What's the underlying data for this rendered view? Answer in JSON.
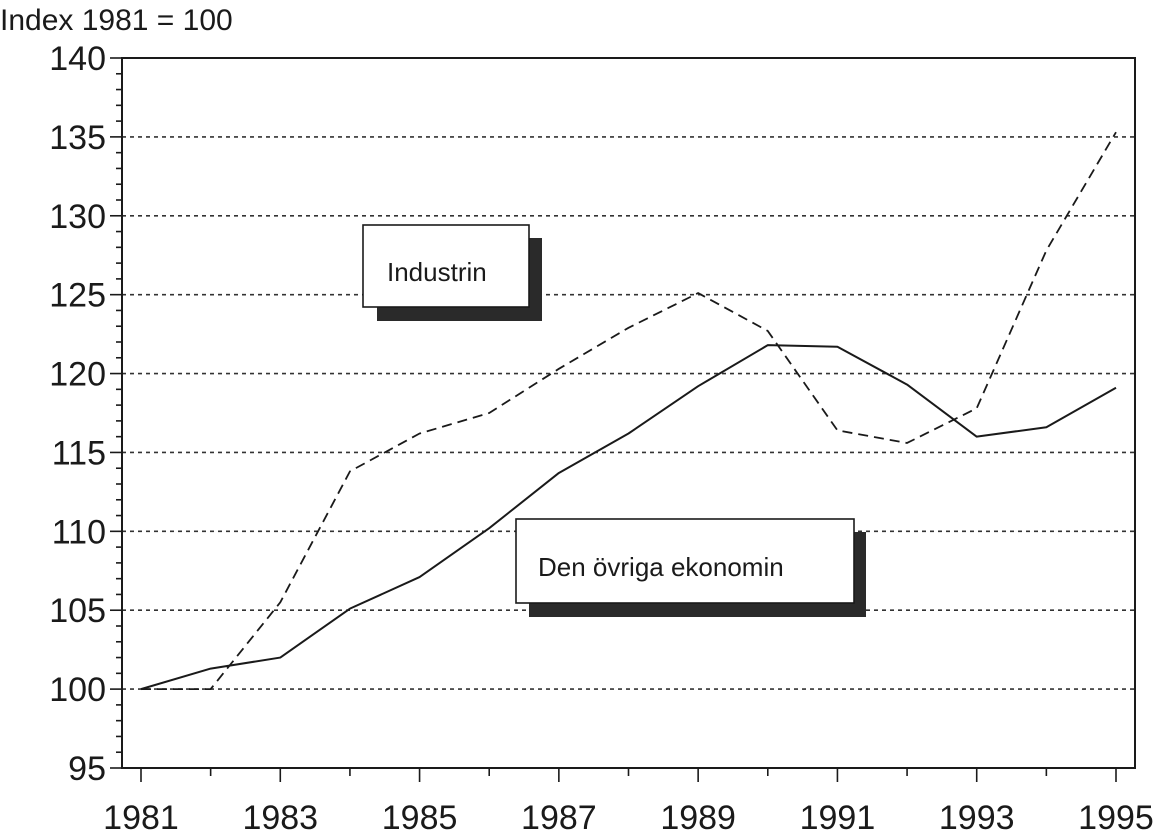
{
  "chart_data": {
    "type": "line",
    "title": "",
    "ylabel": "Index 1981 = 100",
    "xlabel": "",
    "x": [
      1981,
      1982,
      1983,
      1984,
      1985,
      1986,
      1987,
      1988,
      1989,
      1990,
      1991,
      1992,
      1993,
      1994,
      1995
    ],
    "xlim": [
      1981,
      1995
    ],
    "ylim": [
      95,
      140
    ],
    "xticks": [
      "1981",
      "1983",
      "1985",
      "1987",
      "1989",
      "1991",
      "1993",
      "1995"
    ],
    "yticks": [
      "95",
      "100",
      "105",
      "110",
      "115",
      "120",
      "125",
      "130",
      "135",
      "140"
    ],
    "grid": true,
    "series": [
      {
        "name": "Industrin",
        "style": "dashed",
        "color": "#1a1a1a",
        "values": [
          100.0,
          100.0,
          105.5,
          113.8,
          116.2,
          117.5,
          120.3,
          122.9,
          125.1,
          122.7,
          116.4,
          115.6,
          117.8,
          127.8,
          135.3
        ]
      },
      {
        "name": "Den övriga ekonomin",
        "style": "solid",
        "color": "#1a1a1a",
        "values": [
          100.0,
          101.3,
          102.0,
          105.1,
          107.1,
          110.2,
          113.7,
          116.2,
          119.2,
          121.8,
          121.7,
          119.3,
          116.0,
          116.6,
          119.1
        ]
      }
    ],
    "annotations": [
      {
        "text": "Industrin",
        "series": 0
      },
      {
        "text": "Den övriga ekonomin",
        "series": 1
      }
    ]
  }
}
